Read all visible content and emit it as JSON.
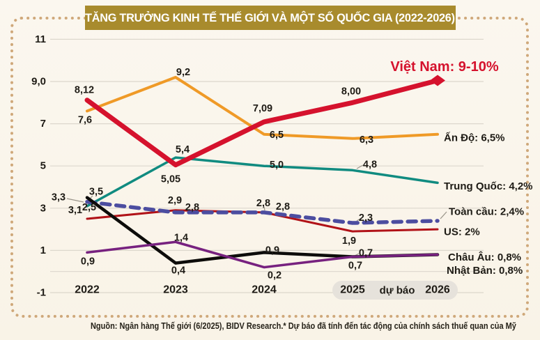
{
  "title": "TĂNG TRƯỞNG KINH TẾ THẾ GIỚI VÀ MỘT SỐ QUỐC GIA (2022-2026)",
  "source": "Nguồn: Ngân hàng Thế giới (6/2025), BIDV Research.* Dự báo đã tính đến tác động của chính sách thuế quan của Mỹ",
  "colors": {
    "title_bg": "#a88b2d",
    "title_text": "#ffffff",
    "frame_dots": "#cfa87a",
    "background": "#faf5ec",
    "grid": "#dcd7cc",
    "pill": "#e6e2db",
    "text": "#1e1b15",
    "leader": "#9a958a"
  },
  "chart_data": {
    "type": "line",
    "x_labels": [
      "2022",
      "2023",
      "2024",
      "2025",
      "2026"
    ],
    "forecast_label": "dự báo",
    "forecast_years": [
      "2025",
      "2026"
    ],
    "ylim": [
      -1,
      11
    ],
    "grid": true,
    "y_ticks": [
      {
        "label": "11",
        "value": 11
      },
      {
        "label": "9,0",
        "value": 9
      },
      {
        "label": "7",
        "value": 7
      },
      {
        "label": "5",
        "value": 5
      },
      {
        "label": "3",
        "value": 3
      },
      {
        "label": "1",
        "value": 1
      },
      {
        "label": "",
        "value": 0
      },
      {
        "label": "-1",
        "value": -1
      }
    ],
    "series": [
      {
        "key": "india",
        "name": "Ấn Độ",
        "color": "#ef9a27",
        "values": [
          7.6,
          9.2,
          6.5,
          6.3,
          6.5
        ],
        "point_labels": [
          "7,6",
          "9,2",
          "6,5",
          "6,3"
        ],
        "legend": "Ấn Độ: 6,5%"
      },
      {
        "key": "china",
        "name": "Trung Quốc",
        "color": "#108b80",
        "values": [
          3.1,
          5.4,
          5.0,
          4.8,
          4.2
        ],
        "point_labels": [
          "3,1",
          "5,4",
          "5,0",
          "4,8"
        ],
        "legend": "Trung Quốc: 4,2%"
      },
      {
        "key": "us",
        "name": "US",
        "color": "#b11218",
        "values": [
          2.5,
          2.9,
          2.8,
          1.9,
          2.0
        ],
        "point_labels": [
          "2,5",
          "2,9",
          "2,8",
          "1,9"
        ],
        "legend": "US: 2%"
      },
      {
        "key": "global",
        "name": "Toàn cầu",
        "color": "#4c4da0",
        "values": [
          3.3,
          2.8,
          2.8,
          2.3,
          2.4
        ],
        "point_labels": [
          "3,3",
          "2,8",
          "2,8",
          "2,3"
        ],
        "legend": "Toàn cầu: 2,4%",
        "dashed": true
      },
      {
        "key": "europe",
        "name": "Châu Âu",
        "color": "#0d0c0a",
        "values": [
          3.5,
          0.4,
          0.9,
          0.7,
          0.8
        ],
        "point_labels": [
          "3,5",
          "0,4",
          "0,9",
          "0,7"
        ],
        "legend": "Châu Âu: 0,8%"
      },
      {
        "key": "japan",
        "name": "Nhật Bản",
        "color": "#77217f",
        "values": [
          0.9,
          1.4,
          0.2,
          0.7,
          0.8
        ],
        "point_labels": [
          "0,9",
          "1,4",
          "0,2",
          "0,7"
        ],
        "legend": "Nhật Bản: 0,8%"
      },
      {
        "key": "vn",
        "name": "Việt Nam",
        "color": "#d5122d",
        "values": [
          8.12,
          5.05,
          7.09,
          8.0,
          9.05
        ],
        "point_labels": [
          "8,12",
          "5,05",
          "7,09",
          "8,00"
        ],
        "legend": "Việt Nam: 9-10%",
        "marker": "diamond"
      }
    ]
  }
}
